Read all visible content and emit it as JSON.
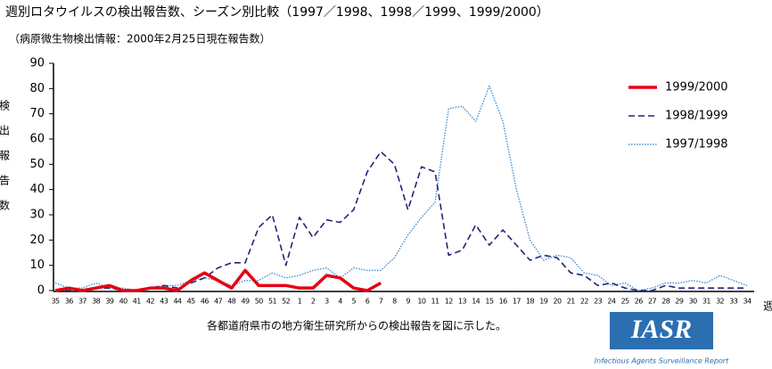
{
  "chart_data": {
    "type": "line",
    "title": "週別ロタウイルスの検出報告数、シーズン別比較（1997／1998、1998／1999、1999/2000）",
    "subtitle": "（病原微生物検出情報：2000年2月25日現在報告数）",
    "y_label": "検出報告数",
    "x_label": "週",
    "note": "各都道府県市の地方衛生研究所からの検出報告を図に示した。",
    "logo": "IASR",
    "logo_caption": "Infectious Agents Surveillance Report",
    "categories": [
      "35",
      "36",
      "37",
      "38",
      "39",
      "40",
      "41",
      "42",
      "43",
      "44",
      "45",
      "46",
      "47",
      "48",
      "49",
      "50",
      "51",
      "52",
      "1",
      "2",
      "3",
      "4",
      "5",
      "6",
      "7",
      "8",
      "9",
      "10",
      "11",
      "12",
      "13",
      "14",
      "15",
      "16",
      "17",
      "18",
      "19",
      "20",
      "21",
      "22",
      "23",
      "24",
      "25",
      "26",
      "27",
      "28",
      "29",
      "30",
      "31",
      "32",
      "33",
      "34"
    ],
    "ylim": [
      0,
      90
    ],
    "yticks": [
      0,
      10,
      20,
      30,
      40,
      50,
      60,
      70,
      80,
      90
    ],
    "grid": false,
    "legend": "top-right",
    "series": [
      {
        "name": "1999/2000",
        "color": "#e60012",
        "style": "solid",
        "values": [
          0,
          1,
          0,
          1,
          2,
          0,
          0,
          1,
          1,
          0,
          4,
          7,
          4,
          1,
          8,
          2,
          2,
          2,
          1,
          1,
          6,
          5,
          1,
          0,
          3,
          null,
          null,
          null,
          null,
          null,
          null,
          null,
          null,
          null,
          null,
          null,
          null,
          null,
          null,
          null,
          null,
          null,
          null,
          null,
          null,
          null,
          null,
          null,
          null,
          null,
          null,
          null
        ]
      },
      {
        "name": "1998/1999",
        "color": "#23237a",
        "style": "dashed",
        "values": [
          0,
          0,
          0,
          1,
          1,
          0,
          0,
          1,
          2,
          1,
          3,
          5,
          9,
          11,
          11,
          25,
          30,
          10,
          29,
          21,
          28,
          27,
          32,
          47,
          55,
          50,
          32,
          49,
          47,
          14,
          16,
          26,
          18,
          24,
          18,
          12,
          14,
          13,
          7,
          6,
          2,
          3,
          1,
          0,
          0,
          2,
          1,
          1,
          1,
          1,
          1,
          1
        ]
      },
      {
        "name": "1997/1998",
        "color": "#3f8fd8",
        "style": "dotted",
        "values": [
          3,
          1,
          1,
          3,
          1,
          1,
          0,
          1,
          2,
          2,
          4,
          5,
          4,
          2,
          4,
          4,
          7,
          5,
          6,
          8,
          9,
          5,
          9,
          8,
          8,
          13,
          22,
          29,
          35,
          72,
          73,
          67,
          81,
          67,
          40,
          20,
          12,
          14,
          13,
          7,
          6,
          2,
          3,
          0,
          1,
          3,
          3,
          4,
          3,
          6,
          4,
          2
        ]
      }
    ]
  }
}
